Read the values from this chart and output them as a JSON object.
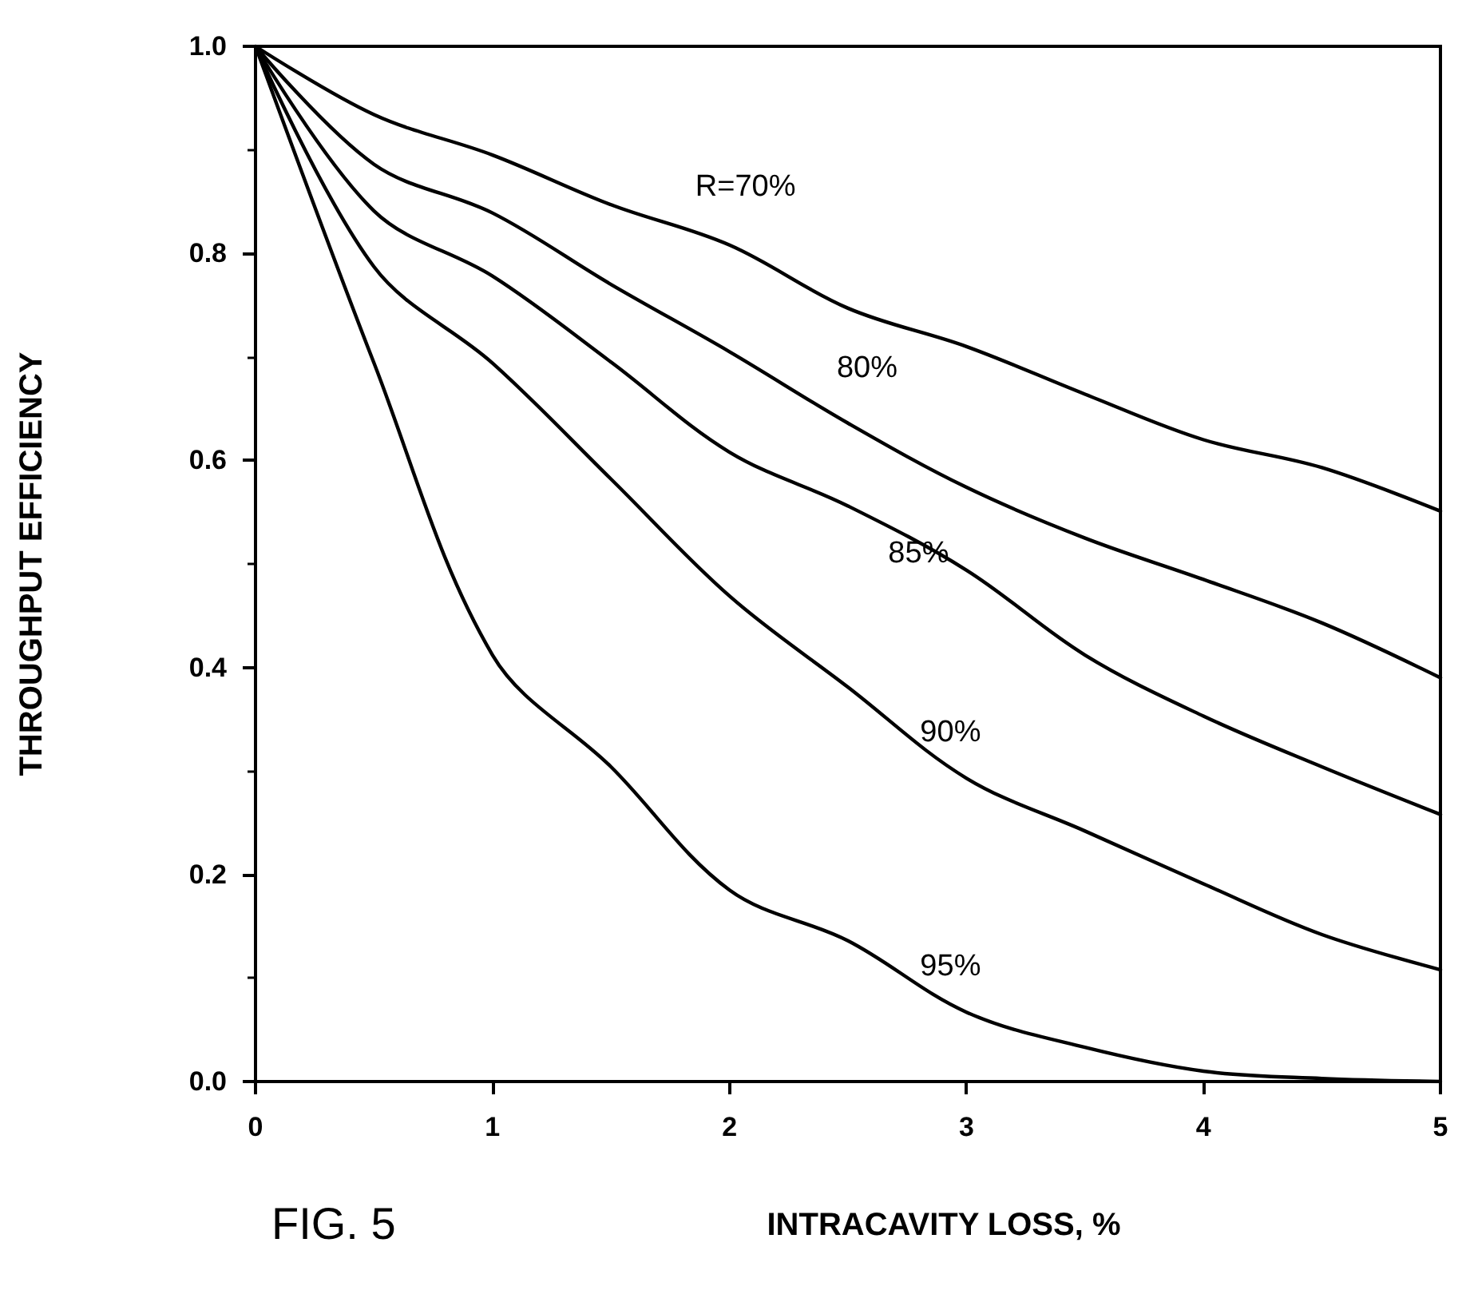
{
  "chart_data": {
    "type": "line",
    "xlabel": "INTRACAVITY LOSS, %",
    "ylabel": "THROUGHPUT EFFICIENCY",
    "annotations": [
      "FIG. 5"
    ],
    "x": [
      0,
      0.5,
      1,
      1.5,
      2,
      2.5,
      3,
      3.5,
      4,
      4.5,
      5
    ],
    "series": [
      {
        "name": "R=70%",
        "color": "#000000",
        "values": [
          1.0,
          0.934,
          0.895,
          0.847,
          0.808,
          0.747,
          0.71,
          0.664,
          0.62,
          0.593,
          0.551
        ]
      },
      {
        "name": "80%",
        "color": "#000000",
        "values": [
          1.0,
          0.886,
          0.839,
          0.77,
          0.705,
          0.636,
          0.574,
          0.525,
          0.485,
          0.443,
          0.39
        ]
      },
      {
        "name": "85%",
        "color": "#000000",
        "values": [
          1.0,
          0.841,
          0.778,
          0.695,
          0.608,
          0.556,
          0.494,
          0.412,
          0.353,
          0.304,
          0.258
        ]
      },
      {
        "name": "90%",
        "color": "#000000",
        "values": [
          1.0,
          0.787,
          0.694,
          0.582,
          0.469,
          0.381,
          0.293,
          0.242,
          0.191,
          0.142,
          0.108
        ]
      },
      {
        "name": "95%",
        "color": "#000000",
        "values": [
          1.0,
          0.694,
          0.412,
          0.304,
          0.185,
          0.136,
          0.067,
          0.033,
          0.01,
          0.003,
          0.0
        ]
      }
    ],
    "xlim": [
      0,
      5
    ],
    "xticks": [
      0,
      1,
      2,
      3,
      4,
      5
    ],
    "ylim": [
      0,
      1.0
    ],
    "yticks": [
      "0.0",
      0.2,
      0.4,
      0.6,
      0.8,
      "1.0"
    ],
    "grid": false,
    "legend": false,
    "marker": "none",
    "line_style": "solid"
  }
}
